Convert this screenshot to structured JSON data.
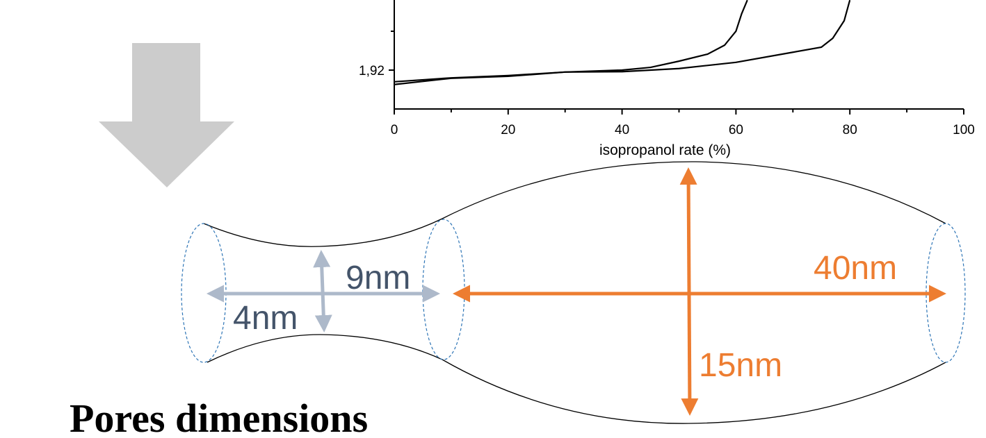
{
  "chart": {
    "type": "line",
    "xlabel": "isopropanol rate (%)",
    "xlim": [
      0,
      100
    ],
    "ylim": [
      1.91,
      1.94
    ],
    "xticks": [
      0,
      20,
      40,
      60,
      80,
      100
    ],
    "xminor": [
      10,
      30,
      50,
      70,
      90
    ],
    "yticks": [
      {
        "value": 1.92,
        "label": "1,92"
      }
    ],
    "yminor": [
      1.93
    ],
    "series": [
      {
        "color": "#000000",
        "x": [
          0,
          10,
          20,
          30,
          40,
          45,
          50,
          55,
          58,
          60,
          61,
          62
        ],
        "values": [
          1.917,
          1.918,
          1.9186,
          1.9195,
          1.92,
          1.9207,
          1.9223,
          1.9241,
          1.9264,
          1.93,
          1.9345,
          1.938
        ]
      },
      {
        "color": "#000000",
        "x": [
          0,
          10,
          20,
          30,
          40,
          50,
          60,
          70,
          75,
          77,
          79,
          80
        ],
        "values": [
          1.9163,
          1.9179,
          1.9184,
          1.9195,
          1.9196,
          1.9204,
          1.922,
          1.9246,
          1.9259,
          1.9282,
          1.9327,
          1.938
        ]
      }
    ]
  },
  "labels": {
    "neck_length": "9nm",
    "neck_width": "4nm",
    "cavity_length": "40nm",
    "cavity_width": "15nm"
  },
  "caption": "Pores dimensions"
}
